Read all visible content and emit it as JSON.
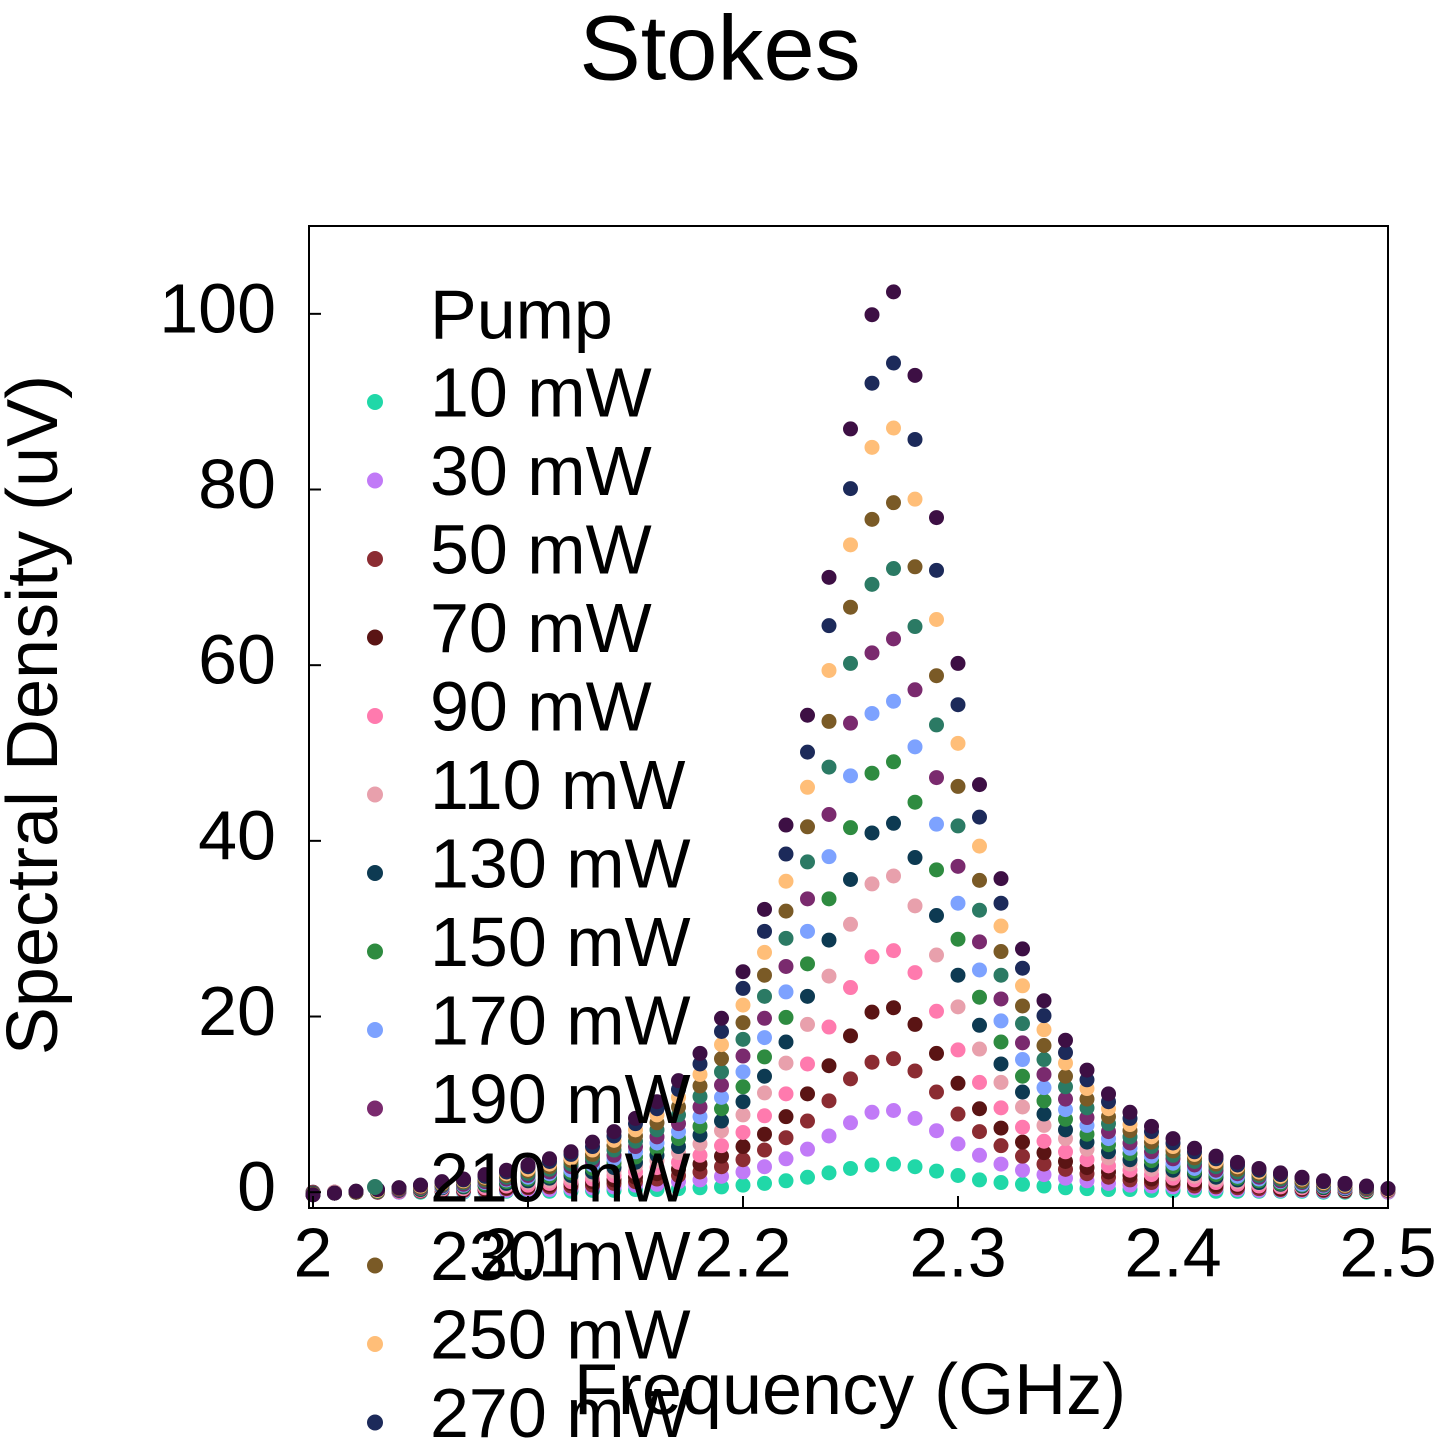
{
  "chart_data": {
    "type": "scatter",
    "title": "Stokes",
    "x_label": "Frequency (GHz)",
    "y_label": "Spectral Density (uV)",
    "legend_title": "Pump",
    "legend_position": "upper left",
    "xlim": [
      2,
      2.5
    ],
    "ylim": [
      -1.8,
      110
    ],
    "xticks": [
      2,
      2.1,
      2.2,
      2.3,
      2.4,
      2.5
    ],
    "yticks": [
      0,
      20,
      40,
      60,
      80,
      100
    ],
    "x": [
      2,
      2.01,
      2.02,
      2.03,
      2.04,
      2.05,
      2.06,
      2.07,
      2.08,
      2.09,
      2.1,
      2.11,
      2.12,
      2.13,
      2.14,
      2.15,
      2.16,
      2.17,
      2.18,
      2.19,
      2.2,
      2.21,
      2.22,
      2.23,
      2.24,
      2.25,
      2.26,
      2.27,
      2.28,
      2.29,
      2.3,
      2.31,
      2.32,
      2.33,
      2.34,
      2.35,
      2.36,
      2.37,
      2.38,
      2.39,
      2.4,
      2.41,
      2.42,
      2.43,
      2.44,
      2.45,
      2.46,
      2.47,
      2.48,
      2.49,
      2.5
    ],
    "series": [
      {
        "name": "10 mW",
        "color": "#20d8a8",
        "values": [
          0,
          0,
          0,
          0,
          0,
          0,
          0,
          0,
          0.1,
          0.1,
          0.1,
          0.1,
          0.1,
          0.2,
          0.2,
          0.3,
          0.3,
          0.4,
          0.5,
          0.6,
          0.8,
          1.0,
          1.3,
          1.7,
          2.2,
          2.7,
          3.1,
          3.2,
          2.9,
          2.4,
          1.9,
          1.4,
          1.1,
          0.9,
          0.7,
          0.5,
          0.4,
          0.3,
          0.3,
          0.2,
          0.2,
          0.2,
          0.1,
          0.1,
          0.1,
          0.1,
          0.1,
          0,
          0,
          0,
          0
        ]
      },
      {
        "name": "30 mW",
        "color": "#c17af7",
        "values": [
          0,
          0,
          0,
          0,
          0,
          0.1,
          0.1,
          0.1,
          0.2,
          0.2,
          0.3,
          0.3,
          0.4,
          0.5,
          0.6,
          0.8,
          0.9,
          1.2,
          1.4,
          1.8,
          2.3,
          2.9,
          3.8,
          4.9,
          6.4,
          7.9,
          9.1,
          9.3,
          8.4,
          7.0,
          5.5,
          4.2,
          3.2,
          2.5,
          2.0,
          1.6,
          1.3,
          1.0,
          0.8,
          0.7,
          0.6,
          0.5,
          0.4,
          0.3,
          0.2,
          0.2,
          0.2,
          0.1,
          0.1,
          0.1,
          0
        ]
      },
      {
        "name": "50 mW",
        "color": "#8b2c32",
        "values": [
          0,
          0,
          0,
          0,
          0.1,
          0.1,
          0.2,
          0.2,
          0.3,
          0.4,
          0.5,
          0.6,
          0.7,
          0.8,
          1.0,
          1.2,
          1.5,
          1.9,
          2.3,
          2.9,
          3.7,
          4.8,
          6.2,
          8.1,
          10.4,
          12.9,
          14.8,
          15.2,
          13.8,
          11.4,
          8.9,
          6.9,
          5.3,
          4.1,
          3.2,
          2.6,
          2.1,
          1.7,
          1.4,
          1.1,
          0.9,
          0.7,
          0.6,
          0.5,
          0.4,
          0.3,
          0.3,
          0.2,
          0.1,
          0.1,
          0.1
        ]
      },
      {
        "name": "70 mW",
        "color": "#5a1414",
        "values": [
          -0.1,
          0,
          0,
          0.1,
          0.1,
          0.2,
          0.2,
          0.3,
          0.4,
          0.5,
          0.6,
          0.8,
          1.0,
          1.2,
          1.4,
          1.7,
          2.1,
          2.6,
          3.2,
          4.1,
          5.2,
          6.6,
          8.6,
          11.2,
          14.4,
          17.8,
          20.5,
          21.0,
          19.1,
          15.8,
          12.4,
          9.5,
          7.3,
          5.7,
          4.5,
          3.5,
          2.8,
          2.3,
          1.9,
          1.5,
          1.3,
          1.0,
          0.8,
          0.7,
          0.6,
          0.4,
          0.4,
          0.3,
          0.2,
          0.1,
          0.1
        ]
      },
      {
        "name": "90 mW",
        "color": "#ff7aae",
        "values": [
          -0.1,
          0,
          0,
          0.1,
          0.1,
          0.2,
          0.3,
          0.4,
          0.5,
          0.7,
          0.8,
          1.0,
          1.2,
          1.5,
          1.9,
          2.3,
          2.8,
          3.4,
          4.2,
          5.3,
          6.8,
          8.7,
          11.2,
          14.6,
          18.8,
          23.3,
          26.8,
          27.5,
          25.0,
          20.6,
          16.2,
          12.5,
          9.6,
          7.4,
          5.8,
          4.6,
          3.7,
          3.0,
          2.5,
          2.0,
          1.6,
          1.4,
          1.1,
          0.9,
          0.7,
          0.6,
          0.5,
          0.4,
          0.3,
          0.2,
          0.1
        ]
      },
      {
        "name": "110 mW",
        "color": "#e8a0ac",
        "values": [
          -0.1,
          0,
          0,
          0.1,
          0.2,
          0.3,
          0.4,
          0.5,
          0.7,
          0.9,
          1.1,
          1.3,
          1.6,
          2.0,
          2.4,
          3.0,
          3.6,
          4.5,
          5.5,
          7.0,
          8.8,
          11.3,
          14.7,
          19.1,
          24.6,
          30.5,
          35.1,
          36.0,
          32.6,
          27.0,
          21.1,
          16.3,
          12.5,
          9.7,
          7.6,
          6.1,
          4.9,
          3.9,
          3.2,
          2.6,
          2.1,
          1.8,
          1.4,
          1.2,
          1.0,
          0.8,
          0.6,
          0.5,
          0.3,
          0.2,
          0.1
        ]
      },
      {
        "name": "130 mW",
        "color": "#0d3a52",
        "values": [
          -0.1,
          -0.1,
          0,
          0.1,
          0.2,
          0.3,
          0.5,
          0.6,
          0.8,
          1.0,
          1.3,
          1.6,
          1.9,
          2.3,
          2.8,
          3.4,
          4.2,
          5.2,
          6.5,
          8.1,
          10.3,
          13.2,
          17.1,
          22.3,
          28.7,
          35.6,
          40.9,
          42.0,
          38.1,
          31.5,
          24.7,
          19.0,
          14.6,
          11.4,
          8.9,
          7.1,
          5.7,
          4.6,
          3.7,
          3.1,
          2.5,
          2.1,
          1.7,
          1.4,
          1.1,
          0.9,
          0.7,
          0.5,
          0.4,
          0.3,
          0.2
        ]
      },
      {
        "name": "150 mW",
        "color": "#2e8b40",
        "values": [
          -0.2,
          -0.1,
          0,
          0.1,
          0.3,
          0.4,
          0.6,
          0.7,
          0.9,
          1.2,
          1.5,
          1.8,
          2.2,
          2.7,
          3.3,
          4.0,
          4.9,
          6.1,
          7.5,
          9.5,
          12.0,
          15.4,
          19.9,
          26.0,
          33.4,
          41.5,
          47.7,
          49.0,
          44.4,
          36.7,
          28.8,
          22.2,
          17.1,
          13.2,
          10.4,
          8.3,
          6.6,
          5.4,
          4.4,
          3.6,
          2.9,
          2.4,
          2.0,
          1.6,
          1.3,
          1.0,
          0.8,
          0.6,
          0.5,
          0.3,
          0.2
        ]
      },
      {
        "name": "170 mW",
        "color": "#7da2ff",
        "values": [
          -0.2,
          -0.1,
          0,
          0.2,
          0.3,
          0.5,
          0.6,
          0.8,
          1.1,
          1.4,
          1.7,
          2.1,
          2.5,
          3.1,
          3.8,
          4.6,
          5.6,
          6.9,
          8.6,
          10.8,
          13.7,
          17.6,
          22.8,
          29.7,
          38.2,
          47.4,
          54.5,
          55.9,
          50.7,
          41.9,
          32.9,
          25.3,
          19.5,
          15.1,
          11.9,
          9.4,
          7.6,
          6.1,
          5.0,
          4.1,
          3.3,
          2.7,
          2.3,
          1.8,
          1.5,
          1.2,
          0.9,
          0.7,
          0.5,
          0.4,
          0.2
        ]
      },
      {
        "name": "190 mW",
        "color": "#7a2a6e",
        "values": [
          -0.2,
          -0.1,
          0,
          0.2,
          0.3,
          0.5,
          0.7,
          0.9,
          1.2,
          1.5,
          1.9,
          2.3,
          2.9,
          3.5,
          4.2,
          5.2,
          6.3,
          7.8,
          9.7,
          12.2,
          15.5,
          19.8,
          25.7,
          33.4,
          43.0,
          53.4,
          61.4,
          63.0,
          57.2,
          47.2,
          37.1,
          28.5,
          22.0,
          17.0,
          13.4,
          10.6,
          8.5,
          6.9,
          5.6,
          4.6,
          3.8,
          3.1,
          2.5,
          2.1,
          1.7,
          1.3,
          1.1,
          0.8,
          0.6,
          0.4,
          0.2
        ]
      },
      {
        "name": "210 mW",
        "color": "#2b7a64",
        "values": [
          -0.2,
          -0.1,
          0,
          0.2,
          0.4,
          0.6,
          0.8,
          1.1,
          1.4,
          1.7,
          2.1,
          2.6,
          3.2,
          3.9,
          4.8,
          5.8,
          7.1,
          8.8,
          10.9,
          13.7,
          17.4,
          22.3,
          28.9,
          37.6,
          48.4,
          60.2,
          69.2,
          71.0,
          64.4,
          53.2,
          41.7,
          32.1,
          24.7,
          19.2,
          15.1,
          12.0,
          9.6,
          7.8,
          6.3,
          5.2,
          4.2,
          3.5,
          2.9,
          2.3,
          1.9,
          1.5,
          1.2,
          0.9,
          0.7,
          0.5,
          0.3
        ]
      },
      {
        "name": "230 mW",
        "color": "#7a5a26",
        "values": [
          -0.2,
          -0.1,
          0,
          0.2,
          0.4,
          0.6,
          0.9,
          1.2,
          1.5,
          1.9,
          2.4,
          2.9,
          3.6,
          4.3,
          5.3,
          6.4,
          7.9,
          9.7,
          12.1,
          15.2,
          19.3,
          24.7,
          32.0,
          41.6,
          53.6,
          66.6,
          76.6,
          78.5,
          71.2,
          58.8,
          46.2,
          35.5,
          27.4,
          21.2,
          16.7,
          13.2,
          10.6,
          8.6,
          7.0,
          5.7,
          4.7,
          3.9,
          3.2,
          2.6,
          2.1,
          1.7,
          1.3,
          1.0,
          0.7,
          0.5,
          0.3
        ]
      },
      {
        "name": "250 mW",
        "color": "#ffbe78",
        "values": [
          -0.3,
          -0.1,
          0.1,
          0.2,
          0.5,
          0.7,
          1.0,
          1.3,
          1.7,
          2.1,
          2.6,
          3.2,
          3.9,
          4.8,
          5.9,
          7.1,
          8.8,
          10.8,
          13.4,
          16.8,
          21.3,
          27.3,
          35.4,
          46.1,
          59.4,
          73.7,
          84.8,
          87.0,
          78.9,
          65.2,
          51.1,
          39.4,
          30.3,
          23.5,
          18.5,
          14.7,
          11.8,
          9.5,
          7.7,
          6.3,
          5.2,
          4.3,
          3.5,
          2.9,
          2.3,
          1.8,
          1.5,
          1.1,
          0.8,
          0.6,
          0.3
        ]
      },
      {
        "name": "270 mW",
        "color": "#1c2a5a",
        "values": [
          -0.3,
          -0.1,
          0.1,
          0.3,
          0.5,
          0.8,
          1.1,
          1.4,
          1.8,
          2.3,
          2.9,
          3.5,
          4.3,
          5.2,
          6.4,
          7.8,
          9.5,
          11.7,
          14.6,
          18.3,
          23.2,
          29.7,
          38.5,
          50.1,
          64.5,
          80.1,
          92.1,
          94.4,
          85.7,
          70.8,
          55.5,
          42.7,
          32.9,
          25.5,
          20.1,
          15.9,
          12.8,
          10.3,
          8.4,
          6.9,
          5.6,
          4.6,
          3.8,
          3.1,
          2.5,
          2.0,
          1.6,
          1.2,
          0.9,
          0.6,
          0.4
        ]
      },
      {
        "color": "#3d0f44",
        "values": [
          -0.3,
          -0.1,
          0.1,
          0.3,
          0.5,
          0.8,
          1.2,
          1.5,
          2.0,
          2.5,
          3.1,
          3.8,
          4.6,
          5.7,
          6.9,
          8.4,
          10.3,
          12.7,
          15.8,
          19.8,
          25.1,
          32.2,
          41.8,
          54.3,
          70.0,
          86.9,
          99.9,
          102.5,
          93.0,
          76.8,
          60.2,
          46.4,
          35.7,
          27.7,
          21.8,
          17.3,
          13.9,
          11.2,
          9.1,
          7.5,
          6.1,
          5.0,
          4.1,
          3.4,
          2.7,
          2.2,
          1.7,
          1.3,
          1.0,
          0.7,
          0.4
        ]
      }
    ]
  }
}
